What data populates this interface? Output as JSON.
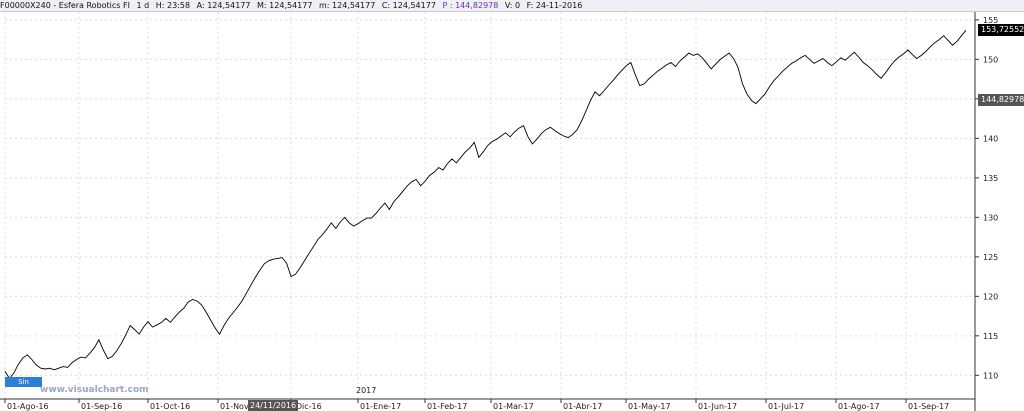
{
  "header": {
    "symbol": "F00000X240 - Esfera Robotics FI",
    "interval": "1 d",
    "hour": "H: 23:58",
    "open": "A: 124,54177",
    "high": "M: 124,54177",
    "low": "m: 124,54177",
    "close": "C: 124,54177",
    "price": "P : 144,82978",
    "volume": "V: 0",
    "date": "F: 24-11-2016"
  },
  "labels": {
    "last_price": "153,72552",
    "cursor_price": "144,82978",
    "orders": "Sin órdenes",
    "watermark": "www.visualchart.com",
    "year": "2017",
    "cursor_date": "24/11/2016"
  },
  "colors": {
    "line": "#000000",
    "grid": "#d9dce2",
    "last_price_badge": "#000000",
    "cursor_badge": "#555555",
    "orders_badge": "#2d7fd6"
  },
  "chart_data": {
    "type": "line",
    "ylim": [
      107,
      156
    ],
    "y_ticks": [
      110,
      115,
      120,
      125,
      130,
      135,
      140,
      145,
      150,
      155
    ],
    "x_ticks": [
      "01-Ago-16",
      "01-Sep-16",
      "01-Oct-16",
      "01-Nov-",
      "-Dic-16",
      "01-Ene-17",
      "01-Feb-17",
      "01-Mar-17",
      "01-Abr-17",
      "01-May-17",
      "01-Jun-17",
      "01-Jul-17",
      "01-Ago-17",
      "01-Sep-17"
    ],
    "series": [
      {
        "values": [
          110.5,
          109.6,
          110.3,
          111.4,
          112.2,
          112.6,
          112.0,
          111.3,
          110.9,
          110.8,
          110.9,
          110.7,
          110.9,
          111.1,
          111.0,
          111.6,
          112.0,
          112.3,
          112.2,
          112.8,
          113.5,
          114.5,
          113.2,
          112.1,
          112.4,
          113.1,
          114.0,
          115.1,
          116.3,
          115.8,
          115.2,
          116.1,
          116.8,
          116.1,
          116.4,
          116.7,
          117.2,
          116.7,
          117.4,
          118.0,
          118.5,
          119.3,
          119.6,
          119.4,
          118.9,
          118.0,
          117.0,
          116.0,
          115.2,
          116.3,
          117.2,
          117.9,
          118.6,
          119.4,
          120.4,
          121.4,
          122.4,
          123.3,
          124.1,
          124.5,
          124.7,
          124.8,
          124.9,
          124.2,
          122.5,
          122.8,
          123.6,
          124.5,
          125.4,
          126.3,
          127.2,
          127.8,
          128.5,
          129.3,
          128.6,
          129.4,
          130.0,
          129.3,
          128.9,
          129.2,
          129.6,
          129.9,
          129.9,
          130.5,
          131.2,
          131.8,
          131.0,
          132.0,
          132.6,
          133.3,
          134.0,
          134.5,
          134.8,
          134.0,
          134.6,
          135.3,
          135.7,
          136.3,
          136.0,
          136.8,
          137.4,
          136.9,
          137.6,
          138.3,
          138.8,
          139.5,
          137.6,
          138.3,
          139.1,
          139.6,
          139.9,
          140.3,
          140.7,
          140.2,
          140.8,
          141.3,
          141.6,
          140.2,
          139.3,
          139.9,
          140.6,
          141.1,
          141.4,
          141.0,
          140.6,
          140.3,
          140.1,
          140.5,
          141.1,
          142.2,
          143.5,
          144.8,
          145.9,
          145.4,
          146.0,
          146.7,
          147.3,
          148.0,
          148.6,
          149.2,
          149.6,
          148.1,
          146.7,
          146.9,
          147.5,
          148.0,
          148.5,
          148.9,
          149.3,
          149.6,
          149.1,
          149.8,
          150.3,
          150.8,
          150.5,
          150.7,
          150.2,
          149.5,
          148.8,
          149.4,
          150.0,
          150.4,
          150.8,
          150.1,
          149.0,
          146.9,
          145.6,
          144.8,
          144.4,
          145.0,
          145.6,
          146.5,
          147.3,
          147.9,
          148.5,
          149.0,
          149.5,
          149.8,
          150.2,
          150.5,
          150.0,
          149.5,
          149.8,
          150.1,
          149.6,
          149.2,
          149.7,
          150.2,
          149.9,
          150.4,
          150.9,
          150.3,
          149.6,
          149.2,
          148.7,
          148.1,
          147.6,
          148.3,
          149.1,
          149.8,
          150.3,
          150.7,
          151.2,
          150.6,
          150.1,
          150.5,
          151.0,
          151.6,
          152.1,
          152.5,
          153.0,
          152.4,
          151.8,
          152.3,
          153.0,
          153.7
        ]
      }
    ]
  }
}
